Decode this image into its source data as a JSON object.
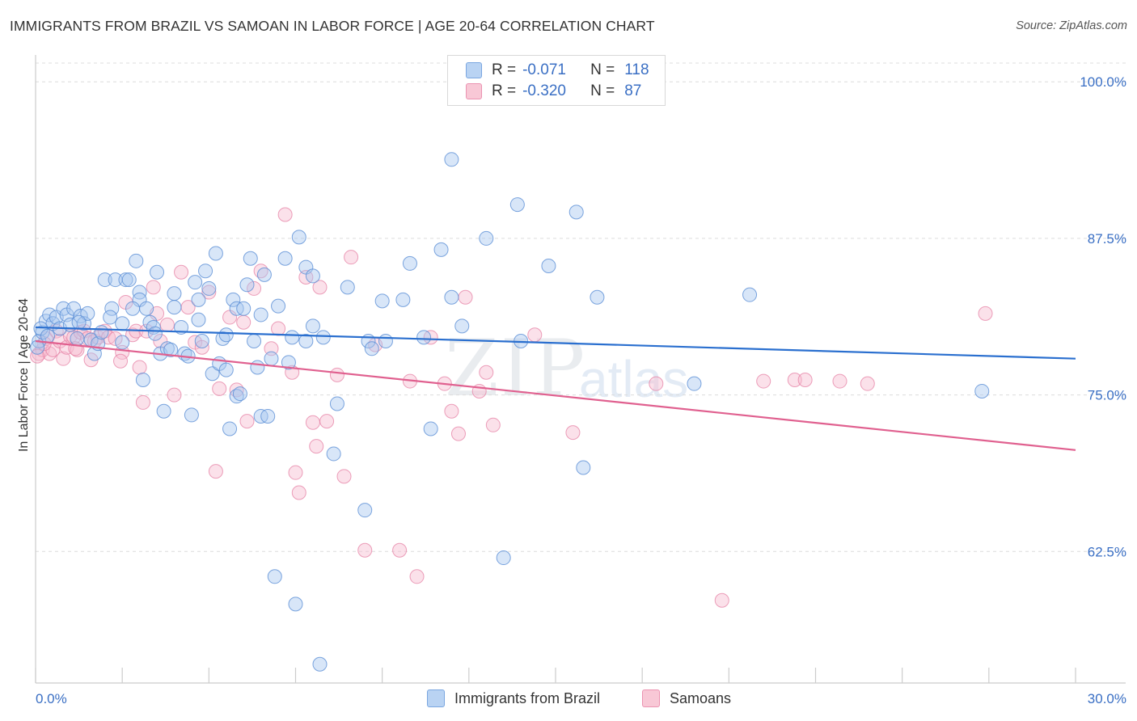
{
  "title": "IMMIGRANTS FROM BRAZIL VS SAMOAN IN LABOR FORCE | AGE 20-64 CORRELATION CHART",
  "source": "Source: ZipAtlas.com",
  "watermark": {
    "zip": "ZIP",
    "atlas": "atlas"
  },
  "legend": {
    "rows": [
      {
        "r_label": "R =",
        "r_value": "-0.071",
        "n_label": "N =",
        "n_value": "118",
        "color": "#9dc3ee"
      },
      {
        "r_label": "R =",
        "r_value": "-0.320",
        "n_label": "N =",
        "n_value": "87",
        "color": "#f5b5c8"
      }
    ]
  },
  "bottom_legend": [
    {
      "label": "Immigrants from Brazil",
      "color": "#b9d3f3"
    },
    {
      "label": "Samoans",
      "color": "#f8c8d6"
    }
  ],
  "colors": {
    "blue_fill": "#a8c8ef",
    "blue_stroke": "#5b8fd6",
    "blue_line": "#2a6fcf",
    "pink_fill": "#f6bdd0",
    "pink_stroke": "#e680a4",
    "pink_line": "#e0608f",
    "tick_text": "#3a6fc4"
  },
  "chart_data": {
    "type": "scatter",
    "title": "IMMIGRANTS FROM BRAZIL VS SAMOAN IN LABOR FORCE | AGE 20-64 CORRELATION CHART",
    "xlabel": "",
    "ylabel": "In Labor Force | Age 20-64",
    "xlim": [
      0,
      30
    ],
    "ylim": [
      52,
      101.5
    ],
    "x_tick_labels": [
      "0.0%",
      "30.0%"
    ],
    "y_ticks": [
      62.5,
      75.0,
      87.5,
      100.0
    ],
    "y_tick_labels": [
      "62.5%",
      "75.0%",
      "87.5%",
      "100.0%"
    ],
    "grid": true,
    "legend_position": "top-center",
    "series": [
      {
        "name": "Immigrants from Brazil",
        "trend": [
          [
            0,
            80.4
          ],
          [
            30,
            77.9
          ]
        ],
        "points": [
          [
            0.1,
            79.3
          ],
          [
            0.2,
            80.0
          ],
          [
            0.3,
            80.9
          ],
          [
            0.4,
            81.4
          ],
          [
            0.5,
            80.7
          ],
          [
            0.6,
            81.2
          ],
          [
            0.7,
            80.3
          ],
          [
            0.8,
            81.9
          ],
          [
            0.9,
            81.4
          ],
          [
            1.0,
            80.6
          ],
          [
            1.1,
            81.9
          ],
          [
            1.2,
            79.5
          ],
          [
            1.3,
            81.3
          ],
          [
            1.4,
            80.7
          ],
          [
            1.5,
            81.5
          ],
          [
            1.6,
            79.4
          ],
          [
            1.7,
            78.3
          ],
          [
            1.8,
            79.1
          ],
          [
            2.0,
            84.2
          ],
          [
            2.2,
            81.9
          ],
          [
            2.3,
            84.2
          ],
          [
            2.5,
            80.7
          ],
          [
            2.5,
            79.2
          ],
          [
            2.6,
            84.2
          ],
          [
            2.7,
            84.2
          ],
          [
            2.9,
            85.7
          ],
          [
            3.0,
            83.2
          ],
          [
            3.0,
            82.6
          ],
          [
            3.1,
            76.2
          ],
          [
            3.2,
            81.9
          ],
          [
            3.3,
            80.8
          ],
          [
            3.4,
            80.4
          ],
          [
            3.5,
            84.8
          ],
          [
            3.6,
            78.3
          ],
          [
            3.7,
            73.7
          ],
          [
            3.8,
            78.7
          ],
          [
            4.0,
            82.0
          ],
          [
            4.0,
            83.1
          ],
          [
            4.2,
            80.4
          ],
          [
            4.3,
            78.3
          ],
          [
            4.4,
            78.1
          ],
          [
            4.5,
            73.4
          ],
          [
            4.7,
            82.6
          ],
          [
            4.7,
            81.0
          ],
          [
            4.8,
            79.3
          ],
          [
            4.9,
            84.9
          ],
          [
            5.0,
            83.5
          ],
          [
            5.1,
            76.7
          ],
          [
            5.2,
            86.3
          ],
          [
            5.3,
            77.5
          ],
          [
            5.4,
            79.5
          ],
          [
            5.5,
            77.0
          ],
          [
            5.6,
            72.3
          ],
          [
            5.7,
            82.6
          ],
          [
            5.8,
            74.9
          ],
          [
            5.8,
            81.9
          ],
          [
            5.9,
            75.1
          ],
          [
            6.0,
            81.9
          ],
          [
            6.1,
            83.8
          ],
          [
            6.2,
            85.9
          ],
          [
            6.3,
            79.3
          ],
          [
            6.5,
            73.3
          ],
          [
            6.5,
            81.4
          ],
          [
            6.6,
            84.6
          ],
          [
            6.7,
            73.3
          ],
          [
            6.8,
            77.9
          ],
          [
            6.9,
            60.5
          ],
          [
            7.0,
            82.1
          ],
          [
            7.2,
            85.9
          ],
          [
            7.4,
            79.6
          ],
          [
            7.5,
            58.3
          ],
          [
            7.6,
            87.6
          ],
          [
            7.8,
            79.3
          ],
          [
            7.8,
            85.2
          ],
          [
            8.0,
            84.5
          ],
          [
            8.0,
            80.5
          ],
          [
            8.2,
            53.5
          ],
          [
            8.3,
            79.6
          ],
          [
            8.6,
            70.3
          ],
          [
            8.7,
            74.3
          ],
          [
            9.0,
            83.6
          ],
          [
            9.5,
            65.8
          ],
          [
            9.6,
            79.3
          ],
          [
            10.0,
            82.5
          ],
          [
            10.1,
            79.3
          ],
          [
            10.6,
            82.6
          ],
          [
            10.8,
            85.5
          ],
          [
            11.4,
            72.3
          ],
          [
            11.7,
            86.6
          ],
          [
            12.0,
            93.8
          ],
          [
            12.0,
            82.8
          ],
          [
            12.3,
            80.5
          ],
          [
            13.0,
            87.5
          ],
          [
            13.5,
            62.0
          ],
          [
            13.9,
            90.2
          ],
          [
            14.0,
            79.3
          ],
          [
            14.8,
            85.3
          ],
          [
            15.6,
            89.6
          ],
          [
            15.8,
            69.2
          ],
          [
            16.2,
            82.8
          ],
          [
            19.0,
            75.9
          ],
          [
            20.6,
            83.0
          ],
          [
            27.3,
            75.3
          ],
          [
            0.15,
            80.3
          ],
          [
            0.35,
            79.7
          ],
          [
            1.9,
            80.0
          ],
          [
            2.8,
            81.9
          ],
          [
            3.9,
            78.6
          ],
          [
            4.6,
            84.0
          ],
          [
            5.5,
            79.8
          ],
          [
            6.4,
            77.2
          ],
          [
            7.3,
            77.6
          ],
          [
            9.7,
            78.7
          ],
          [
            11.2,
            79.6
          ],
          [
            0.05,
            78.8
          ],
          [
            1.25,
            80.8
          ],
          [
            2.15,
            81.2
          ],
          [
            3.45,
            79.9
          ]
        ]
      },
      {
        "name": "Samoans",
        "trend": [
          [
            0,
            79.3
          ],
          [
            30,
            70.6
          ]
        ],
        "points": [
          [
            0.1,
            78.3
          ],
          [
            0.2,
            78.6
          ],
          [
            0.3,
            79.5
          ],
          [
            0.4,
            78.3
          ],
          [
            0.5,
            78.6
          ],
          [
            0.6,
            80.1
          ],
          [
            0.7,
            79.3
          ],
          [
            0.8,
            77.9
          ],
          [
            0.9,
            78.8
          ],
          [
            1.0,
            79.7
          ],
          [
            1.1,
            79.6
          ],
          [
            1.2,
            78.6
          ],
          [
            1.3,
            80.0
          ],
          [
            1.4,
            80.1
          ],
          [
            1.5,
            79.5
          ],
          [
            1.6,
            77.8
          ],
          [
            1.7,
            79.3
          ],
          [
            1.8,
            79.6
          ],
          [
            2.0,
            80.1
          ],
          [
            2.1,
            79.6
          ],
          [
            2.3,
            79.5
          ],
          [
            2.5,
            78.4
          ],
          [
            2.6,
            82.4
          ],
          [
            2.8,
            79.8
          ],
          [
            2.9,
            80.1
          ],
          [
            3.0,
            77.2
          ],
          [
            3.1,
            74.4
          ],
          [
            3.2,
            80.1
          ],
          [
            3.4,
            83.6
          ],
          [
            3.5,
            81.5
          ],
          [
            3.6,
            79.3
          ],
          [
            3.8,
            80.6
          ],
          [
            4.0,
            75.0
          ],
          [
            4.2,
            84.8
          ],
          [
            4.4,
            82.0
          ],
          [
            4.6,
            79.2
          ],
          [
            4.8,
            78.8
          ],
          [
            5.0,
            83.2
          ],
          [
            5.2,
            68.9
          ],
          [
            5.3,
            75.5
          ],
          [
            5.6,
            81.2
          ],
          [
            5.8,
            75.4
          ],
          [
            6.0,
            80.8
          ],
          [
            6.1,
            72.9
          ],
          [
            6.3,
            83.5
          ],
          [
            6.5,
            84.9
          ],
          [
            6.8,
            78.7
          ],
          [
            7.0,
            80.3
          ],
          [
            7.2,
            89.4
          ],
          [
            7.4,
            76.8
          ],
          [
            7.5,
            68.8
          ],
          [
            7.6,
            67.2
          ],
          [
            7.8,
            84.4
          ],
          [
            8.0,
            72.8
          ],
          [
            8.1,
            70.9
          ],
          [
            8.2,
            83.6
          ],
          [
            8.4,
            72.9
          ],
          [
            8.7,
            76.6
          ],
          [
            8.9,
            68.5
          ],
          [
            9.1,
            86.0
          ],
          [
            9.5,
            62.6
          ],
          [
            9.8,
            79.0
          ],
          [
            10.5,
            62.6
          ],
          [
            10.8,
            76.1
          ],
          [
            11.0,
            60.5
          ],
          [
            11.4,
            79.6
          ],
          [
            11.8,
            75.9
          ],
          [
            12.0,
            73.7
          ],
          [
            12.2,
            71.9
          ],
          [
            12.4,
            82.8
          ],
          [
            12.8,
            75.3
          ],
          [
            13.0,
            76.8
          ],
          [
            13.2,
            72.6
          ],
          [
            14.4,
            79.8
          ],
          [
            15.5,
            72.0
          ],
          [
            17.9,
            75.9
          ],
          [
            19.8,
            58.6
          ],
          [
            21.0,
            76.1
          ],
          [
            21.9,
            76.2
          ],
          [
            22.2,
            76.2
          ],
          [
            23.2,
            76.1
          ],
          [
            24.0,
            75.9
          ],
          [
            27.4,
            81.5
          ],
          [
            0.05,
            78.1
          ],
          [
            0.25,
            79.1
          ],
          [
            1.15,
            78.7
          ],
          [
            2.45,
            77.7
          ]
        ]
      }
    ]
  }
}
